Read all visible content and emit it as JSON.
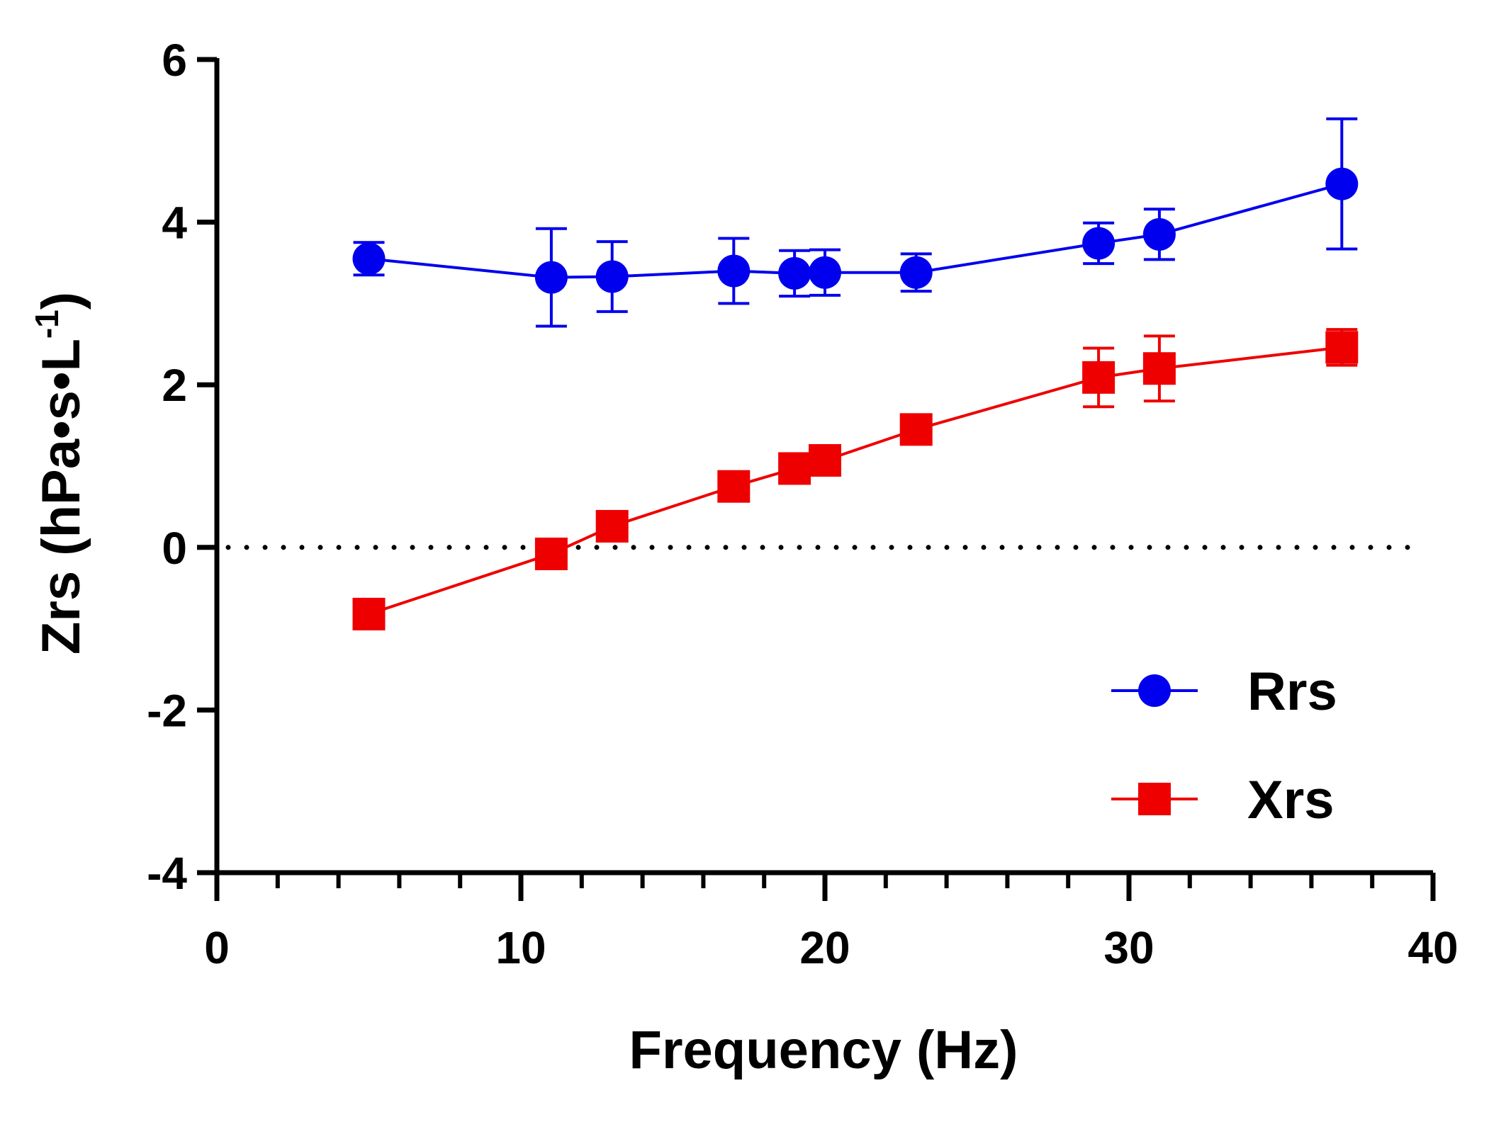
{
  "chart_data": {
    "type": "line",
    "title": "",
    "xlabel": "Frequency (Hz)",
    "ylabel": {
      "main": "Zrs (hPa•s•L",
      "superscript": "-1",
      "close": ")"
    },
    "xlim": [
      0,
      40
    ],
    "ylim": [
      -4,
      6
    ],
    "x_ticks": [
      0,
      10,
      20,
      30,
      40
    ],
    "x_tick_labels": [
      "0",
      "10",
      "20",
      "30",
      "40"
    ],
    "x_minor_step": 2,
    "y_ticks": [
      -4,
      -2,
      0,
      2,
      4,
      6
    ],
    "y_tick_labels": [
      "-4",
      "-2",
      "0",
      "2",
      "4",
      "6"
    ],
    "reference_line": {
      "y": 0,
      "style": "dotted",
      "color": "#000000"
    },
    "legend": {
      "position": "bottom-right"
    },
    "series": [
      {
        "name": "Rrs",
        "marker": "circle",
        "color": "#0000ee",
        "x": [
          5,
          11,
          13,
          17,
          19,
          20,
          23,
          29,
          31,
          37
        ],
        "y": [
          3.55,
          3.32,
          3.33,
          3.4,
          3.37,
          3.38,
          3.38,
          3.74,
          3.85,
          4.47
        ],
        "err": [
          0.2,
          0.6,
          0.43,
          0.4,
          0.28,
          0.28,
          0.23,
          0.25,
          0.31,
          0.8
        ]
      },
      {
        "name": "Xrs",
        "marker": "square",
        "color": "#ee0000",
        "x": [
          5,
          11,
          13,
          17,
          19,
          20,
          23,
          29,
          31,
          37
        ],
        "y": [
          -0.82,
          -0.08,
          0.26,
          0.75,
          0.97,
          1.07,
          1.45,
          2.09,
          2.2,
          2.46
        ],
        "err": [
          0.0,
          0.0,
          0.0,
          0.0,
          0.0,
          0.0,
          0.0,
          0.36,
          0.4,
          0.22
        ]
      }
    ]
  }
}
